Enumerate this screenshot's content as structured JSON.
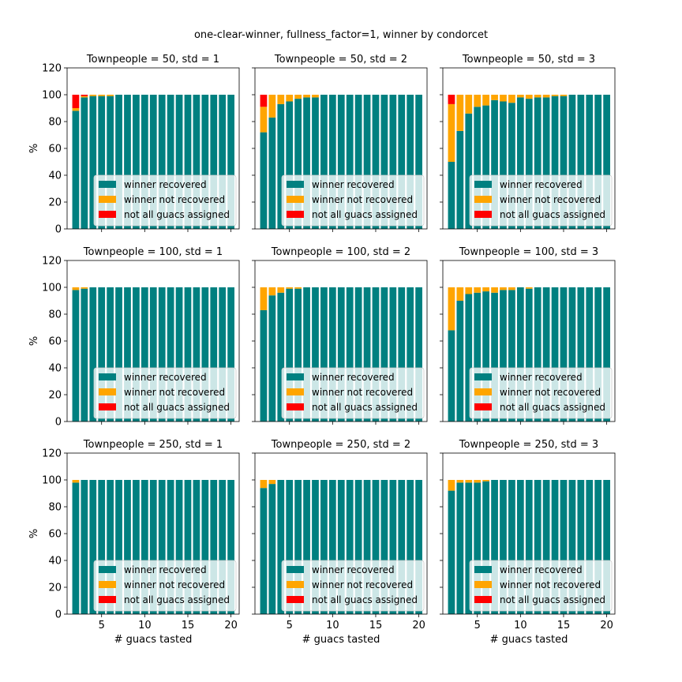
{
  "figure": {
    "suptitle": "one-clear-winner, fullness_factor=1, winner by condorcet",
    "xlabel": "# guacs tasted",
    "ylabel": "%",
    "legend": [
      "winner recovered",
      "winner not recovered",
      "not all guacs assigned"
    ],
    "colors": {
      "recovered": "#008080",
      "not_recovered": "#ffa500",
      "unassigned": "#ff0000"
    }
  },
  "chart_data": [
    {
      "type": "bar",
      "title": "Townpeople = 50, std = 1",
      "x": [
        2,
        3,
        4,
        5,
        6,
        7,
        8,
        9,
        10,
        11,
        12,
        13,
        14,
        15,
        16,
        17,
        18,
        19,
        20
      ],
      "series": [
        {
          "name": "winner recovered",
          "values": [
            88,
            98,
            99,
            99,
            99,
            100,
            100,
            100,
            100,
            100,
            100,
            100,
            100,
            100,
            100,
            100,
            100,
            100,
            100
          ]
        },
        {
          "name": "winner not recovered",
          "values": [
            2,
            1,
            1,
            1,
            1,
            0,
            0,
            0,
            0,
            0,
            0,
            0,
            0,
            0,
            0,
            0,
            0,
            0,
            0
          ]
        },
        {
          "name": "not all guacs assigned",
          "values": [
            10,
            1,
            0,
            0,
            0,
            0,
            0,
            0,
            0,
            0,
            0,
            0,
            0,
            0,
            0,
            0,
            0,
            0,
            0
          ]
        }
      ],
      "ylim": [
        0,
        120
      ],
      "legend": "lower-right"
    },
    {
      "type": "bar",
      "title": "Townpeople = 50, std = 2",
      "x": [
        2,
        3,
        4,
        5,
        6,
        7,
        8,
        9,
        10,
        11,
        12,
        13,
        14,
        15,
        16,
        17,
        18,
        19,
        20
      ],
      "series": [
        {
          "name": "winner recovered",
          "values": [
            72,
            83,
            93,
            95,
            97,
            98,
            98,
            100,
            100,
            100,
            100,
            100,
            100,
            100,
            100,
            100,
            100,
            100,
            100
          ]
        },
        {
          "name": "winner not recovered",
          "values": [
            19,
            17,
            7,
            5,
            3,
            2,
            2,
            0,
            0,
            0,
            0,
            0,
            0,
            0,
            0,
            0,
            0,
            0,
            0
          ]
        },
        {
          "name": "not all guacs assigned",
          "values": [
            9,
            0,
            0,
            0,
            0,
            0,
            0,
            0,
            0,
            0,
            0,
            0,
            0,
            0,
            0,
            0,
            0,
            0,
            0
          ]
        }
      ],
      "ylim": [
        0,
        120
      ],
      "legend": "lower-right"
    },
    {
      "type": "bar",
      "title": "Townpeople = 50, std = 3",
      "x": [
        2,
        3,
        4,
        5,
        6,
        7,
        8,
        9,
        10,
        11,
        12,
        13,
        14,
        15,
        16,
        17,
        18,
        19,
        20
      ],
      "series": [
        {
          "name": "winner recovered",
          "values": [
            50,
            73,
            86,
            91,
            92,
            96,
            95,
            94,
            98,
            97,
            98,
            98,
            99,
            99,
            100,
            100,
            100,
            100,
            100
          ]
        },
        {
          "name": "winner not recovered",
          "values": [
            43,
            27,
            14,
            9,
            8,
            4,
            5,
            6,
            2,
            3,
            2,
            2,
            1,
            1,
            0,
            0,
            0,
            0,
            0
          ]
        },
        {
          "name": "not all guacs assigned",
          "values": [
            7,
            0,
            0,
            0,
            0,
            0,
            0,
            0,
            0,
            0,
            0,
            0,
            0,
            0,
            0,
            0,
            0,
            0,
            0
          ]
        }
      ],
      "ylim": [
        0,
        120
      ],
      "legend": "lower-right"
    },
    {
      "type": "bar",
      "title": "Townpeople = 100, std = 1",
      "x": [
        2,
        3,
        4,
        5,
        6,
        7,
        8,
        9,
        10,
        11,
        12,
        13,
        14,
        15,
        16,
        17,
        18,
        19,
        20
      ],
      "series": [
        {
          "name": "winner recovered",
          "values": [
            98,
            99,
            100,
            100,
            100,
            100,
            100,
            100,
            100,
            100,
            100,
            100,
            100,
            100,
            100,
            100,
            100,
            100,
            100
          ]
        },
        {
          "name": "winner not recovered",
          "values": [
            2,
            1,
            0,
            0,
            0,
            0,
            0,
            0,
            0,
            0,
            0,
            0,
            0,
            0,
            0,
            0,
            0,
            0,
            0
          ]
        },
        {
          "name": "not all guacs assigned",
          "values": [
            0,
            0,
            0,
            0,
            0,
            0,
            0,
            0,
            0,
            0,
            0,
            0,
            0,
            0,
            0,
            0,
            0,
            0,
            0
          ]
        }
      ],
      "ylim": [
        0,
        120
      ],
      "legend": "lower-right"
    },
    {
      "type": "bar",
      "title": "Townpeople = 100, std = 2",
      "x": [
        2,
        3,
        4,
        5,
        6,
        7,
        8,
        9,
        10,
        11,
        12,
        13,
        14,
        15,
        16,
        17,
        18,
        19,
        20
      ],
      "series": [
        {
          "name": "winner recovered",
          "values": [
            83,
            94,
            96,
            99,
            99,
            100,
            100,
            100,
            100,
            100,
            100,
            100,
            100,
            100,
            100,
            100,
            100,
            100,
            100
          ]
        },
        {
          "name": "winner not recovered",
          "values": [
            17,
            6,
            4,
            1,
            1,
            0,
            0,
            0,
            0,
            0,
            0,
            0,
            0,
            0,
            0,
            0,
            0,
            0,
            0
          ]
        },
        {
          "name": "not all guacs assigned",
          "values": [
            0,
            0,
            0,
            0,
            0,
            0,
            0,
            0,
            0,
            0,
            0,
            0,
            0,
            0,
            0,
            0,
            0,
            0,
            0
          ]
        }
      ],
      "ylim": [
        0,
        120
      ],
      "legend": "lower-right"
    },
    {
      "type": "bar",
      "title": "Townpeople = 100, std = 3",
      "x": [
        2,
        3,
        4,
        5,
        6,
        7,
        8,
        9,
        10,
        11,
        12,
        13,
        14,
        15,
        16,
        17,
        18,
        19,
        20
      ],
      "series": [
        {
          "name": "winner recovered",
          "values": [
            68,
            90,
            95,
            96,
            97,
            96,
            98,
            98,
            100,
            99,
            100,
            100,
            100,
            100,
            100,
            100,
            100,
            100,
            100
          ]
        },
        {
          "name": "winner not recovered",
          "values": [
            32,
            10,
            5,
            4,
            3,
            4,
            2,
            2,
            0,
            1,
            0,
            0,
            0,
            0,
            0,
            0,
            0,
            0,
            0
          ]
        },
        {
          "name": "not all guacs assigned",
          "values": [
            0,
            0,
            0,
            0,
            0,
            0,
            0,
            0,
            0,
            0,
            0,
            0,
            0,
            0,
            0,
            0,
            0,
            0,
            0
          ]
        }
      ],
      "ylim": [
        0,
        120
      ],
      "legend": "lower-right"
    },
    {
      "type": "bar",
      "title": "Townpeople = 250, std = 1",
      "x": [
        2,
        3,
        4,
        5,
        6,
        7,
        8,
        9,
        10,
        11,
        12,
        13,
        14,
        15,
        16,
        17,
        18,
        19,
        20
      ],
      "series": [
        {
          "name": "winner recovered",
          "values": [
            98,
            100,
            100,
            100,
            100,
            100,
            100,
            100,
            100,
            100,
            100,
            100,
            100,
            100,
            100,
            100,
            100,
            100,
            100
          ]
        },
        {
          "name": "winner not recovered",
          "values": [
            2,
            0,
            0,
            0,
            0,
            0,
            0,
            0,
            0,
            0,
            0,
            0,
            0,
            0,
            0,
            0,
            0,
            0,
            0
          ]
        },
        {
          "name": "not all guacs assigned",
          "values": [
            0,
            0,
            0,
            0,
            0,
            0,
            0,
            0,
            0,
            0,
            0,
            0,
            0,
            0,
            0,
            0,
            0,
            0,
            0
          ]
        }
      ],
      "ylim": [
        0,
        120
      ],
      "legend": "lower-right"
    },
    {
      "type": "bar",
      "title": "Townpeople = 250, std = 2",
      "x": [
        2,
        3,
        4,
        5,
        6,
        7,
        8,
        9,
        10,
        11,
        12,
        13,
        14,
        15,
        16,
        17,
        18,
        19,
        20
      ],
      "series": [
        {
          "name": "winner recovered",
          "values": [
            94,
            97,
            100,
            100,
            100,
            100,
            100,
            100,
            100,
            100,
            100,
            100,
            100,
            100,
            100,
            100,
            100,
            100,
            100
          ]
        },
        {
          "name": "winner not recovered",
          "values": [
            6,
            3,
            0,
            0,
            0,
            0,
            0,
            0,
            0,
            0,
            0,
            0,
            0,
            0,
            0,
            0,
            0,
            0,
            0
          ]
        },
        {
          "name": "not all guacs assigned",
          "values": [
            0,
            0,
            0,
            0,
            0,
            0,
            0,
            0,
            0,
            0,
            0,
            0,
            0,
            0,
            0,
            0,
            0,
            0,
            0
          ]
        }
      ],
      "ylim": [
        0,
        120
      ],
      "legend": "lower-right"
    },
    {
      "type": "bar",
      "title": "Townpeople = 250, std = 3",
      "x": [
        2,
        3,
        4,
        5,
        6,
        7,
        8,
        9,
        10,
        11,
        12,
        13,
        14,
        15,
        16,
        17,
        18,
        19,
        20
      ],
      "series": [
        {
          "name": "winner recovered",
          "values": [
            92,
            98,
            98,
            98,
            99,
            100,
            100,
            100,
            100,
            100,
            100,
            100,
            100,
            100,
            100,
            100,
            100,
            100,
            100
          ]
        },
        {
          "name": "winner not recovered",
          "values": [
            8,
            2,
            2,
            2,
            1,
            0,
            0,
            0,
            0,
            0,
            0,
            0,
            0,
            0,
            0,
            0,
            0,
            0,
            0
          ]
        },
        {
          "name": "not all guacs assigned",
          "values": [
            0,
            0,
            0,
            0,
            0,
            0,
            0,
            0,
            0,
            0,
            0,
            0,
            0,
            0,
            0,
            0,
            0,
            0,
            0
          ]
        }
      ],
      "ylim": [
        0,
        120
      ],
      "legend": "lower-right"
    }
  ]
}
